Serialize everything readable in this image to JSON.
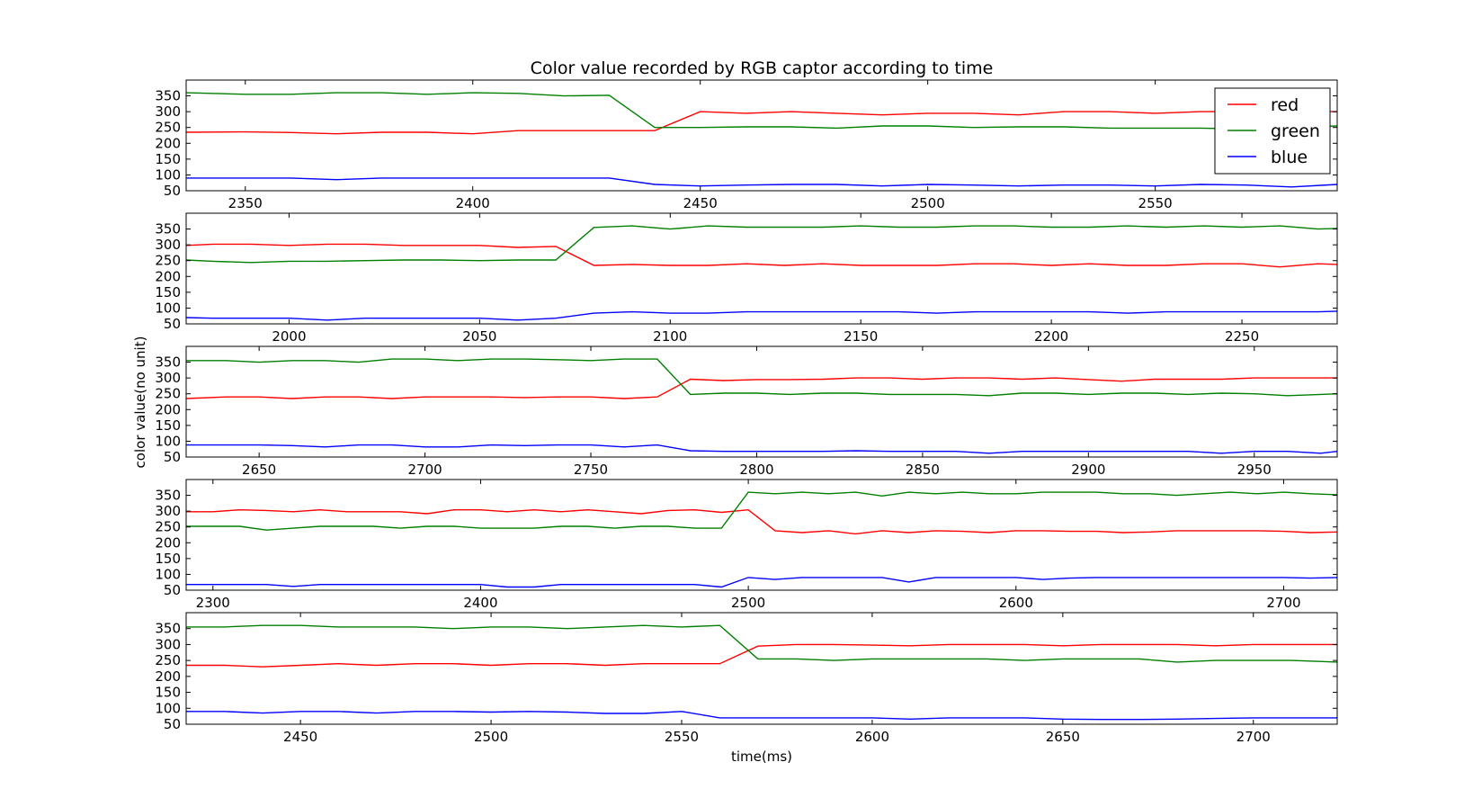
{
  "chart_data": {
    "type": "line",
    "title": "Color value recorded by RGB captor according to time",
    "xlabel": "time(ms)",
    "ylabel": "color value(no unit)",
    "legend": {
      "placement": "top-right",
      "entries": [
        {
          "name": "red",
          "color": "#ff0000"
        },
        {
          "name": "green",
          "color": "#008000"
        },
        {
          "name": "blue",
          "color": "#0000ff"
        }
      ]
    },
    "subplots": [
      {
        "xlim": [
          2337,
          2590
        ],
        "ylim": [
          50,
          400
        ],
        "xticks": [
          2350,
          2400,
          2450,
          2500,
          2550
        ],
        "yticks": [
          50,
          100,
          150,
          200,
          250,
          300,
          350
        ],
        "x": [
          2337,
          2350,
          2360,
          2370,
          2380,
          2390,
          2400,
          2410,
          2420,
          2430,
          2440,
          2450,
          2460,
          2470,
          2480,
          2490,
          2500,
          2510,
          2520,
          2530,
          2540,
          2550,
          2560,
          2570,
          2580,
          2590
        ],
        "series": [
          {
            "name": "red",
            "color": "#ff0000",
            "values": [
              235,
              236,
              234,
              230,
              235,
              235,
              230,
              240,
              240,
              240,
              240,
              300,
              295,
              300,
              295,
              290,
              295,
              295,
              290,
              300,
              300,
              295,
              300,
              300,
              300,
              300
            ]
          },
          {
            "name": "green",
            "color": "#008000",
            "values": [
              360,
              355,
              355,
              360,
              360,
              355,
              360,
              358,
              350,
              352,
              250,
              250,
              252,
              252,
              248,
              255,
              255,
              250,
              252,
              252,
              248,
              248,
              248,
              245,
              250,
              255
            ]
          },
          {
            "name": "blue",
            "color": "#0000ff",
            "values": [
              90,
              90,
              90,
              85,
              90,
              90,
              90,
              90,
              90,
              90,
              70,
              65,
              68,
              70,
              70,
              65,
              70,
              68,
              65,
              68,
              68,
              65,
              70,
              68,
              62,
              70
            ]
          }
        ]
      },
      {
        "xlim": [
          1973,
          2275
        ],
        "ylim": [
          50,
          400
        ],
        "xticks": [
          2000,
          2050,
          2100,
          2150,
          2200,
          2250
        ],
        "yticks": [
          50,
          100,
          150,
          200,
          250,
          300,
          350
        ],
        "x": [
          1973,
          1980,
          1990,
          2000,
          2010,
          2020,
          2030,
          2040,
          2050,
          2060,
          2070,
          2080,
          2090,
          2100,
          2110,
          2120,
          2130,
          2140,
          2150,
          2160,
          2170,
          2180,
          2190,
          2200,
          2210,
          2220,
          2230,
          2240,
          2250,
          2260,
          2270,
          2275
        ],
        "series": [
          {
            "name": "red",
            "color": "#ff0000",
            "values": [
              298,
              302,
              302,
              298,
              302,
              302,
              298,
              298,
              298,
              292,
              295,
              235,
              238,
              235,
              235,
              240,
              235,
              240,
              235,
              235,
              235,
              240,
              240,
              235,
              240,
              235,
              235,
              240,
              240,
              230,
              240,
              238
            ]
          },
          {
            "name": "green",
            "color": "#008000",
            "values": [
              252,
              248,
              244,
              248,
              248,
              250,
              252,
              252,
              250,
              252,
              252,
              355,
              360,
              350,
              360,
              356,
              356,
              356,
              360,
              356,
              356,
              360,
              360,
              356,
              356,
              360,
              356,
              360,
              356,
              360,
              350,
              352
            ]
          },
          {
            "name": "blue",
            "color": "#0000ff",
            "values": [
              70,
              68,
              68,
              68,
              62,
              68,
              68,
              68,
              68,
              62,
              68,
              84,
              88,
              84,
              84,
              88,
              88,
              88,
              88,
              88,
              84,
              88,
              88,
              88,
              88,
              84,
              88,
              88,
              88,
              88,
              88,
              90
            ]
          }
        ]
      },
      {
        "xlim": [
          2628,
          2975
        ],
        "ylim": [
          50,
          400
        ],
        "xticks": [
          2650,
          2700,
          2750,
          2800,
          2850,
          2900,
          2950
        ],
        "yticks": [
          50,
          100,
          150,
          200,
          250,
          300,
          350
        ],
        "x": [
          2628,
          2640,
          2650,
          2660,
          2670,
          2680,
          2690,
          2700,
          2710,
          2720,
          2730,
          2740,
          2750,
          2760,
          2770,
          2780,
          2790,
          2800,
          2810,
          2820,
          2830,
          2840,
          2850,
          2860,
          2870,
          2880,
          2890,
          2900,
          2910,
          2920,
          2930,
          2940,
          2950,
          2960,
          2970,
          2975
        ],
        "series": [
          {
            "name": "red",
            "color": "#ff0000",
            "values": [
              235,
              240,
              240,
              235,
              240,
              240,
              235,
              240,
              240,
              240,
              238,
              240,
              240,
              235,
              240,
              296,
              292,
              295,
              295,
              296,
              300,
              300,
              296,
              300,
              300,
              296,
              300,
              295,
              290,
              296,
              296,
              296,
              300,
              300,
              300,
              300
            ]
          },
          {
            "name": "green",
            "color": "#008000",
            "values": [
              355,
              355,
              350,
              355,
              355,
              350,
              360,
              360,
              355,
              360,
              360,
              358,
              355,
              360,
              360,
              248,
              252,
              252,
              248,
              252,
              252,
              248,
              248,
              248,
              244,
              252,
              252,
              248,
              252,
              252,
              248,
              252,
              250,
              244,
              248,
              250
            ]
          },
          {
            "name": "blue",
            "color": "#0000ff",
            "values": [
              88,
              88,
              88,
              86,
              82,
              88,
              88,
              82,
              82,
              88,
              86,
              88,
              88,
              82,
              88,
              70,
              68,
              68,
              68,
              68,
              70,
              68,
              68,
              68,
              62,
              68,
              68,
              68,
              68,
              68,
              68,
              62,
              68,
              68,
              62,
              68
            ]
          }
        ]
      },
      {
        "xlim": [
          2290,
          2720
        ],
        "ylim": [
          50,
          400
        ],
        "xticks": [
          2300,
          2400,
          2500,
          2600,
          2700
        ],
        "yticks": [
          50,
          100,
          150,
          200,
          250,
          300,
          350
        ],
        "x": [
          2290,
          2300,
          2310,
          2320,
          2330,
          2340,
          2350,
          2360,
          2370,
          2380,
          2390,
          2400,
          2410,
          2420,
          2430,
          2440,
          2450,
          2460,
          2470,
          2480,
          2490,
          2500,
          2510,
          2520,
          2530,
          2540,
          2550,
          2560,
          2570,
          2580,
          2590,
          2600,
          2610,
          2620,
          2630,
          2640,
          2650,
          2660,
          2670,
          2680,
          2690,
          2700,
          2710,
          2720
        ],
        "series": [
          {
            "name": "red",
            "color": "#ff0000",
            "values": [
              298,
              298,
              304,
              302,
              298,
              304,
              298,
              298,
              298,
              292,
              304,
              304,
              298,
              304,
              298,
              304,
              298,
              292,
              302,
              304,
              296,
              304,
              238,
              232,
              238,
              228,
              238,
              232,
              238,
              236,
              232,
              238,
              238,
              236,
              236,
              232,
              234,
              238,
              238,
              238,
              238,
              236,
              232,
              234
            ]
          },
          {
            "name": "green",
            "color": "#008000",
            "values": [
              252,
              252,
              252,
              240,
              246,
              252,
              252,
              252,
              246,
              252,
              252,
              246,
              246,
              246,
              252,
              252,
              246,
              252,
              252,
              246,
              246,
              360,
              355,
              360,
              355,
              360,
              348,
              360,
              355,
              360,
              355,
              355,
              360,
              360,
              360,
              355,
              355,
              350,
              355,
              360,
              355,
              360,
              355,
              352
            ]
          },
          {
            "name": "blue",
            "color": "#0000ff",
            "values": [
              68,
              68,
              68,
              68,
              62,
              68,
              68,
              68,
              68,
              68,
              68,
              68,
              60,
              60,
              68,
              68,
              68,
              68,
              68,
              68,
              60,
              90,
              84,
              90,
              90,
              90,
              90,
              76,
              90,
              90,
              90,
              90,
              84,
              88,
              90,
              90,
              90,
              90,
              90,
              90,
              90,
              90,
              88,
              90
            ]
          }
        ]
      },
      {
        "xlim": [
          2420,
          2722
        ],
        "ylim": [
          50,
          400
        ],
        "xticks": [
          2450,
          2500,
          2550,
          2600,
          2650,
          2700
        ],
        "yticks": [
          50,
          100,
          150,
          200,
          250,
          300,
          350
        ],
        "x": [
          2420,
          2430,
          2440,
          2450,
          2460,
          2470,
          2480,
          2490,
          2500,
          2510,
          2520,
          2530,
          2540,
          2550,
          2560,
          2570,
          2580,
          2590,
          2600,
          2610,
          2620,
          2630,
          2640,
          2650,
          2660,
          2670,
          2680,
          2690,
          2700,
          2710,
          2722
        ],
        "series": [
          {
            "name": "red",
            "color": "#ff0000",
            "values": [
              235,
              235,
              230,
              235,
              240,
              235,
              240,
              240,
              235,
              240,
              240,
              235,
              240,
              240,
              240,
              295,
              300,
              300,
              298,
              296,
              300,
              300,
              300,
              296,
              300,
              300,
              300,
              296,
              300,
              300,
              300
            ]
          },
          {
            "name": "green",
            "color": "#008000",
            "values": [
              355,
              355,
              360,
              360,
              355,
              355,
              355,
              350,
              355,
              355,
              350,
              355,
              360,
              355,
              360,
              255,
              255,
              250,
              255,
              255,
              255,
              255,
              250,
              255,
              255,
              255,
              245,
              250,
              250,
              250,
              245
            ]
          },
          {
            "name": "blue",
            "color": "#0000ff",
            "values": [
              90,
              90,
              85,
              90,
              90,
              85,
              90,
              90,
              88,
              90,
              88,
              84,
              84,
              90,
              70,
              70,
              70,
              70,
              70,
              66,
              70,
              70,
              70,
              66,
              65,
              65,
              66,
              68,
              70,
              70,
              70
            ]
          }
        ]
      }
    ]
  }
}
